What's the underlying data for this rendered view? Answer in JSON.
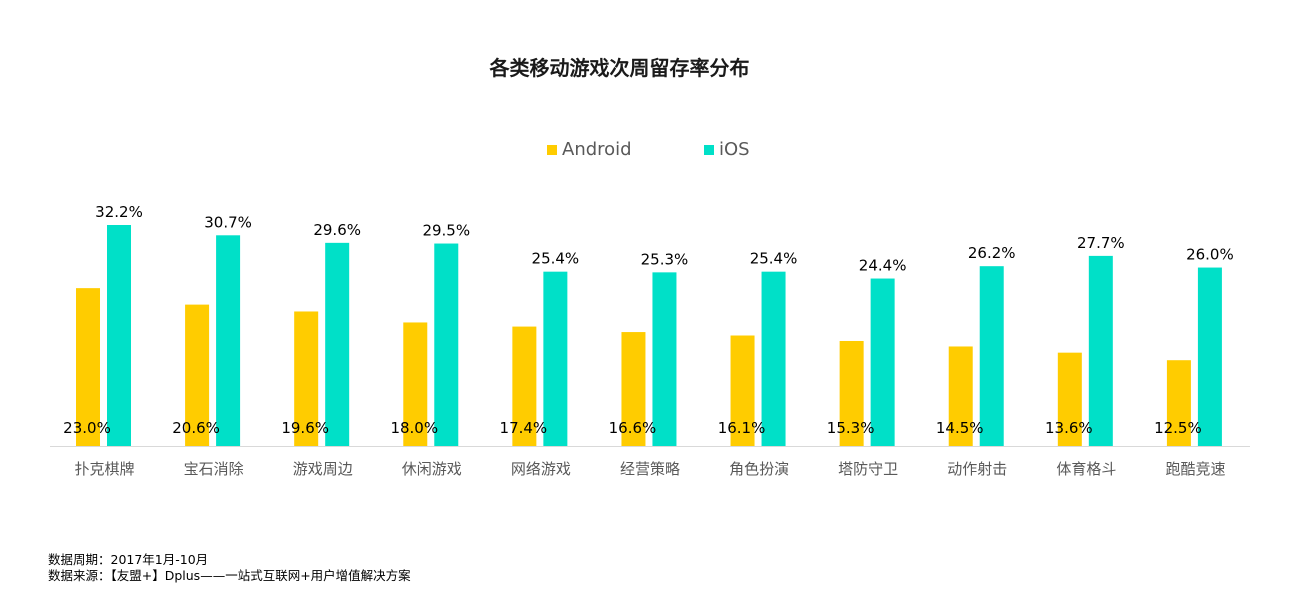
{
  "chart_data": {
    "type": "bar",
    "title": "各类移动游戏次周留存率分布",
    "categories": [
      "扑克棋牌",
      "宝石消除",
      "游戏周边",
      "休闲游戏",
      "网络游戏",
      "经营策略",
      "角色扮演",
      "塔防守卫",
      "动作射击",
      "体育格斗",
      "跑酷竞速"
    ],
    "series": [
      {
        "name": "Android",
        "color": "#FFCC00",
        "values": [
          23.0,
          20.6,
          19.6,
          18.0,
          17.4,
          16.6,
          16.1,
          15.3,
          14.5,
          13.6,
          12.5
        ]
      },
      {
        "name": "iOS",
        "color": "#00E0C8",
        "values": [
          32.2,
          30.7,
          29.6,
          29.5,
          25.4,
          25.3,
          25.4,
          24.4,
          26.2,
          27.7,
          26.0
        ]
      }
    ],
    "value_format": "%",
    "ylim": [
      0,
      32.2
    ],
    "grid": false,
    "legend": "top-center",
    "xlabel": "",
    "ylabel": ""
  },
  "notes": {
    "period": "数据周期：2017年1月-10月",
    "source": "数据来源：【友盟+】Dplus——一站式互联网+用户增值解决方案"
  }
}
